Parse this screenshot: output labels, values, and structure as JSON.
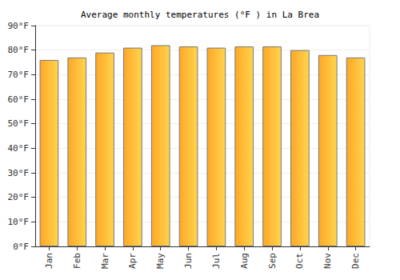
{
  "chart_data": {
    "type": "bar",
    "title": "Average monthly temperatures (°F ) in La Brea",
    "categories": [
      "Jan",
      "Feb",
      "Mar",
      "Apr",
      "May",
      "Jun",
      "Jul",
      "Aug",
      "Sep",
      "Oct",
      "Nov",
      "Dec"
    ],
    "values": [
      76,
      77,
      79,
      81,
      82,
      81.5,
      81,
      81.5,
      81.5,
      80,
      78,
      77
    ],
    "color": "#ffa726",
    "ylim": [
      0,
      90
    ],
    "yticks": [
      {
        "value": 0,
        "label": "0°F"
      },
      {
        "value": 10,
        "label": "10°F"
      },
      {
        "value": 20,
        "label": "20°F"
      },
      {
        "value": 30,
        "label": "30°F"
      },
      {
        "value": 40,
        "label": "40°F"
      },
      {
        "value": 50,
        "label": "50°F"
      },
      {
        "value": 60,
        "label": "60°F"
      },
      {
        "value": 70,
        "label": "70°F"
      },
      {
        "value": 80,
        "label": "80°F"
      },
      {
        "value": 90,
        "label": "90°F"
      }
    ],
    "grid": true
  }
}
